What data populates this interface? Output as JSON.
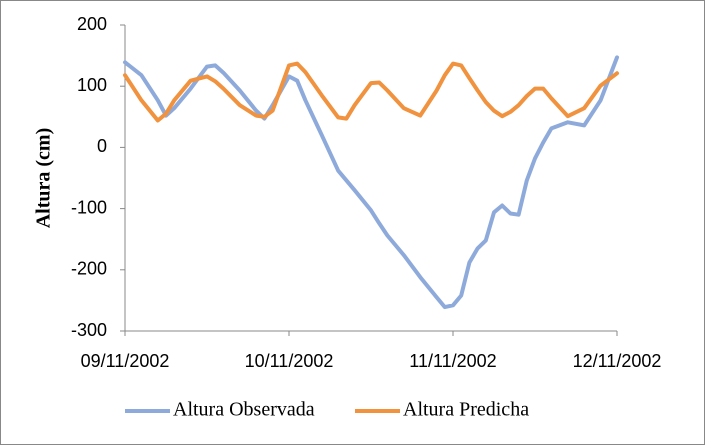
{
  "chart_data": {
    "type": "line",
    "y_label": "Altura (cm)",
    "x": [
      0,
      0.1,
      0.2,
      0.25,
      0.3,
      0.4,
      0.5,
      0.55,
      0.6,
      0.7,
      0.8,
      0.85,
      0.9,
      1.0,
      1.05,
      1.1,
      1.2,
      1.3,
      1.35,
      1.4,
      1.5,
      1.55,
      1.6,
      1.7,
      1.8,
      1.9,
      1.95,
      2.0,
      2.05,
      2.1,
      2.15,
      2.2,
      2.25,
      2.3,
      2.35,
      2.4,
      2.45,
      2.5,
      2.55,
      2.6,
      2.7,
      2.8,
      2.9,
      3.0
    ],
    "series": [
      {
        "name": "Altura Observada",
        "color": "#8eaadb",
        "values": [
          139,
          118,
          77,
          52,
          64,
          96,
          132,
          134,
          122,
          93,
          60,
          47,
          69,
          116,
          109,
          77,
          20,
          -38,
          -54,
          -70,
          -103,
          -124,
          -144,
          -176,
          -212,
          -245,
          -261,
          -258,
          -242,
          -188,
          -165,
          -152,
          -106,
          -95,
          -108,
          -110,
          -54,
          -18,
          8,
          31,
          41,
          36,
          77,
          147
        ]
      },
      {
        "name": "Altura Predicha",
        "color": "#f0923e",
        "values": [
          118,
          77,
          44,
          55,
          77,
          109,
          116,
          108,
          96,
          69,
          52,
          50,
          60,
          134,
          137,
          123,
          85,
          49,
          47,
          69,
          105,
          106,
          93,
          64,
          52,
          93,
          118,
          137,
          134,
          113,
          93,
          74,
          60,
          51,
          58,
          69,
          84,
          96,
          96,
          80,
          51,
          64,
          101,
          121
        ]
      }
    ],
    "xlim": [
      0,
      3
    ],
    "xticks": [
      {
        "value": 0,
        "label": "09/11/2002"
      },
      {
        "value": 1,
        "label": "10/11/2002"
      },
      {
        "value": 2,
        "label": "11/11/2002"
      },
      {
        "value": 3,
        "label": "12/11/2002"
      }
    ],
    "ylim": [
      -300,
      200
    ],
    "yticks": [
      -300,
      -200,
      -100,
      0,
      100,
      200
    ],
    "grid": false,
    "legend": "bottom"
  }
}
